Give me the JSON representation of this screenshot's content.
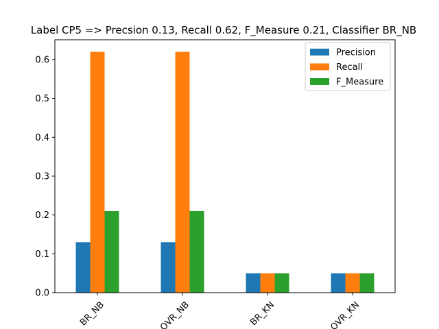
{
  "chart_data": {
    "type": "bar",
    "title": "Label CP5 => Precsion 0.13, Recall 0.62, F_Measure 0.21, Classifier BR_NB",
    "xlabel": "",
    "ylabel": "",
    "categories": [
      "BR_NB",
      "OVR_NB",
      "BR_KN",
      "OVR_KN"
    ],
    "series": [
      {
        "name": "Precision",
        "values": [
          0.13,
          0.13,
          0.05,
          0.05
        ],
        "color": "#1f77b4"
      },
      {
        "name": "Recall",
        "values": [
          0.62,
          0.62,
          0.05,
          0.05
        ],
        "color": "#ff7f0e"
      },
      {
        "name": "F_Measure",
        "values": [
          0.21,
          0.21,
          0.05,
          0.05
        ],
        "color": "#2ca02c"
      }
    ],
    "ylim": [
      0,
      0.651
    ],
    "yticks": [
      "0.0",
      "0.1",
      "0.2",
      "0.3",
      "0.4",
      "0.5",
      "0.6"
    ],
    "xtick_rotation": 45,
    "grid": false,
    "legend_position": "top-right"
  }
}
